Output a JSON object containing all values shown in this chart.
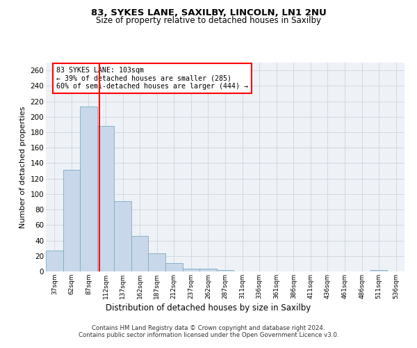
{
  "title1": "83, SYKES LANE, SAXILBY, LINCOLN, LN1 2NU",
  "title2": "Size of property relative to detached houses in Saxilby",
  "xlabel": "Distribution of detached houses by size in Saxilby",
  "ylabel": "Number of detached properties",
  "bar_color": "#c8d8ea",
  "bar_edge_color": "#7aaabf",
  "categories": [
    "37sqm",
    "62sqm",
    "87sqm",
    "112sqm",
    "137sqm",
    "162sqm",
    "187sqm",
    "212sqm",
    "237sqm",
    "262sqm",
    "287sqm",
    "311sqm",
    "336sqm",
    "361sqm",
    "386sqm",
    "411sqm",
    "436sqm",
    "461sqm",
    "486sqm",
    "511sqm",
    "536sqm"
  ],
  "values": [
    27,
    131,
    213,
    188,
    91,
    46,
    23,
    11,
    4,
    4,
    2,
    0,
    0,
    0,
    0,
    0,
    0,
    0,
    0,
    2,
    0
  ],
  "ylim": [
    0,
    270
  ],
  "yticks": [
    0,
    20,
    40,
    60,
    80,
    100,
    120,
    140,
    160,
    180,
    200,
    220,
    240,
    260
  ],
  "red_line_x": 2.65,
  "annotation_line1": "83 SYKES LANE: 103sqm",
  "annotation_line2": "← 39% of detached houses are smaller (285)",
  "annotation_line3": "60% of semi-detached houses are larger (444) →",
  "footer1": "Contains HM Land Registry data © Crown copyright and database right 2024.",
  "footer2": "Contains public sector information licensed under the Open Government Licence v3.0.",
  "background_color": "#eef2f7",
  "grid_color": "#c5cdd8"
}
